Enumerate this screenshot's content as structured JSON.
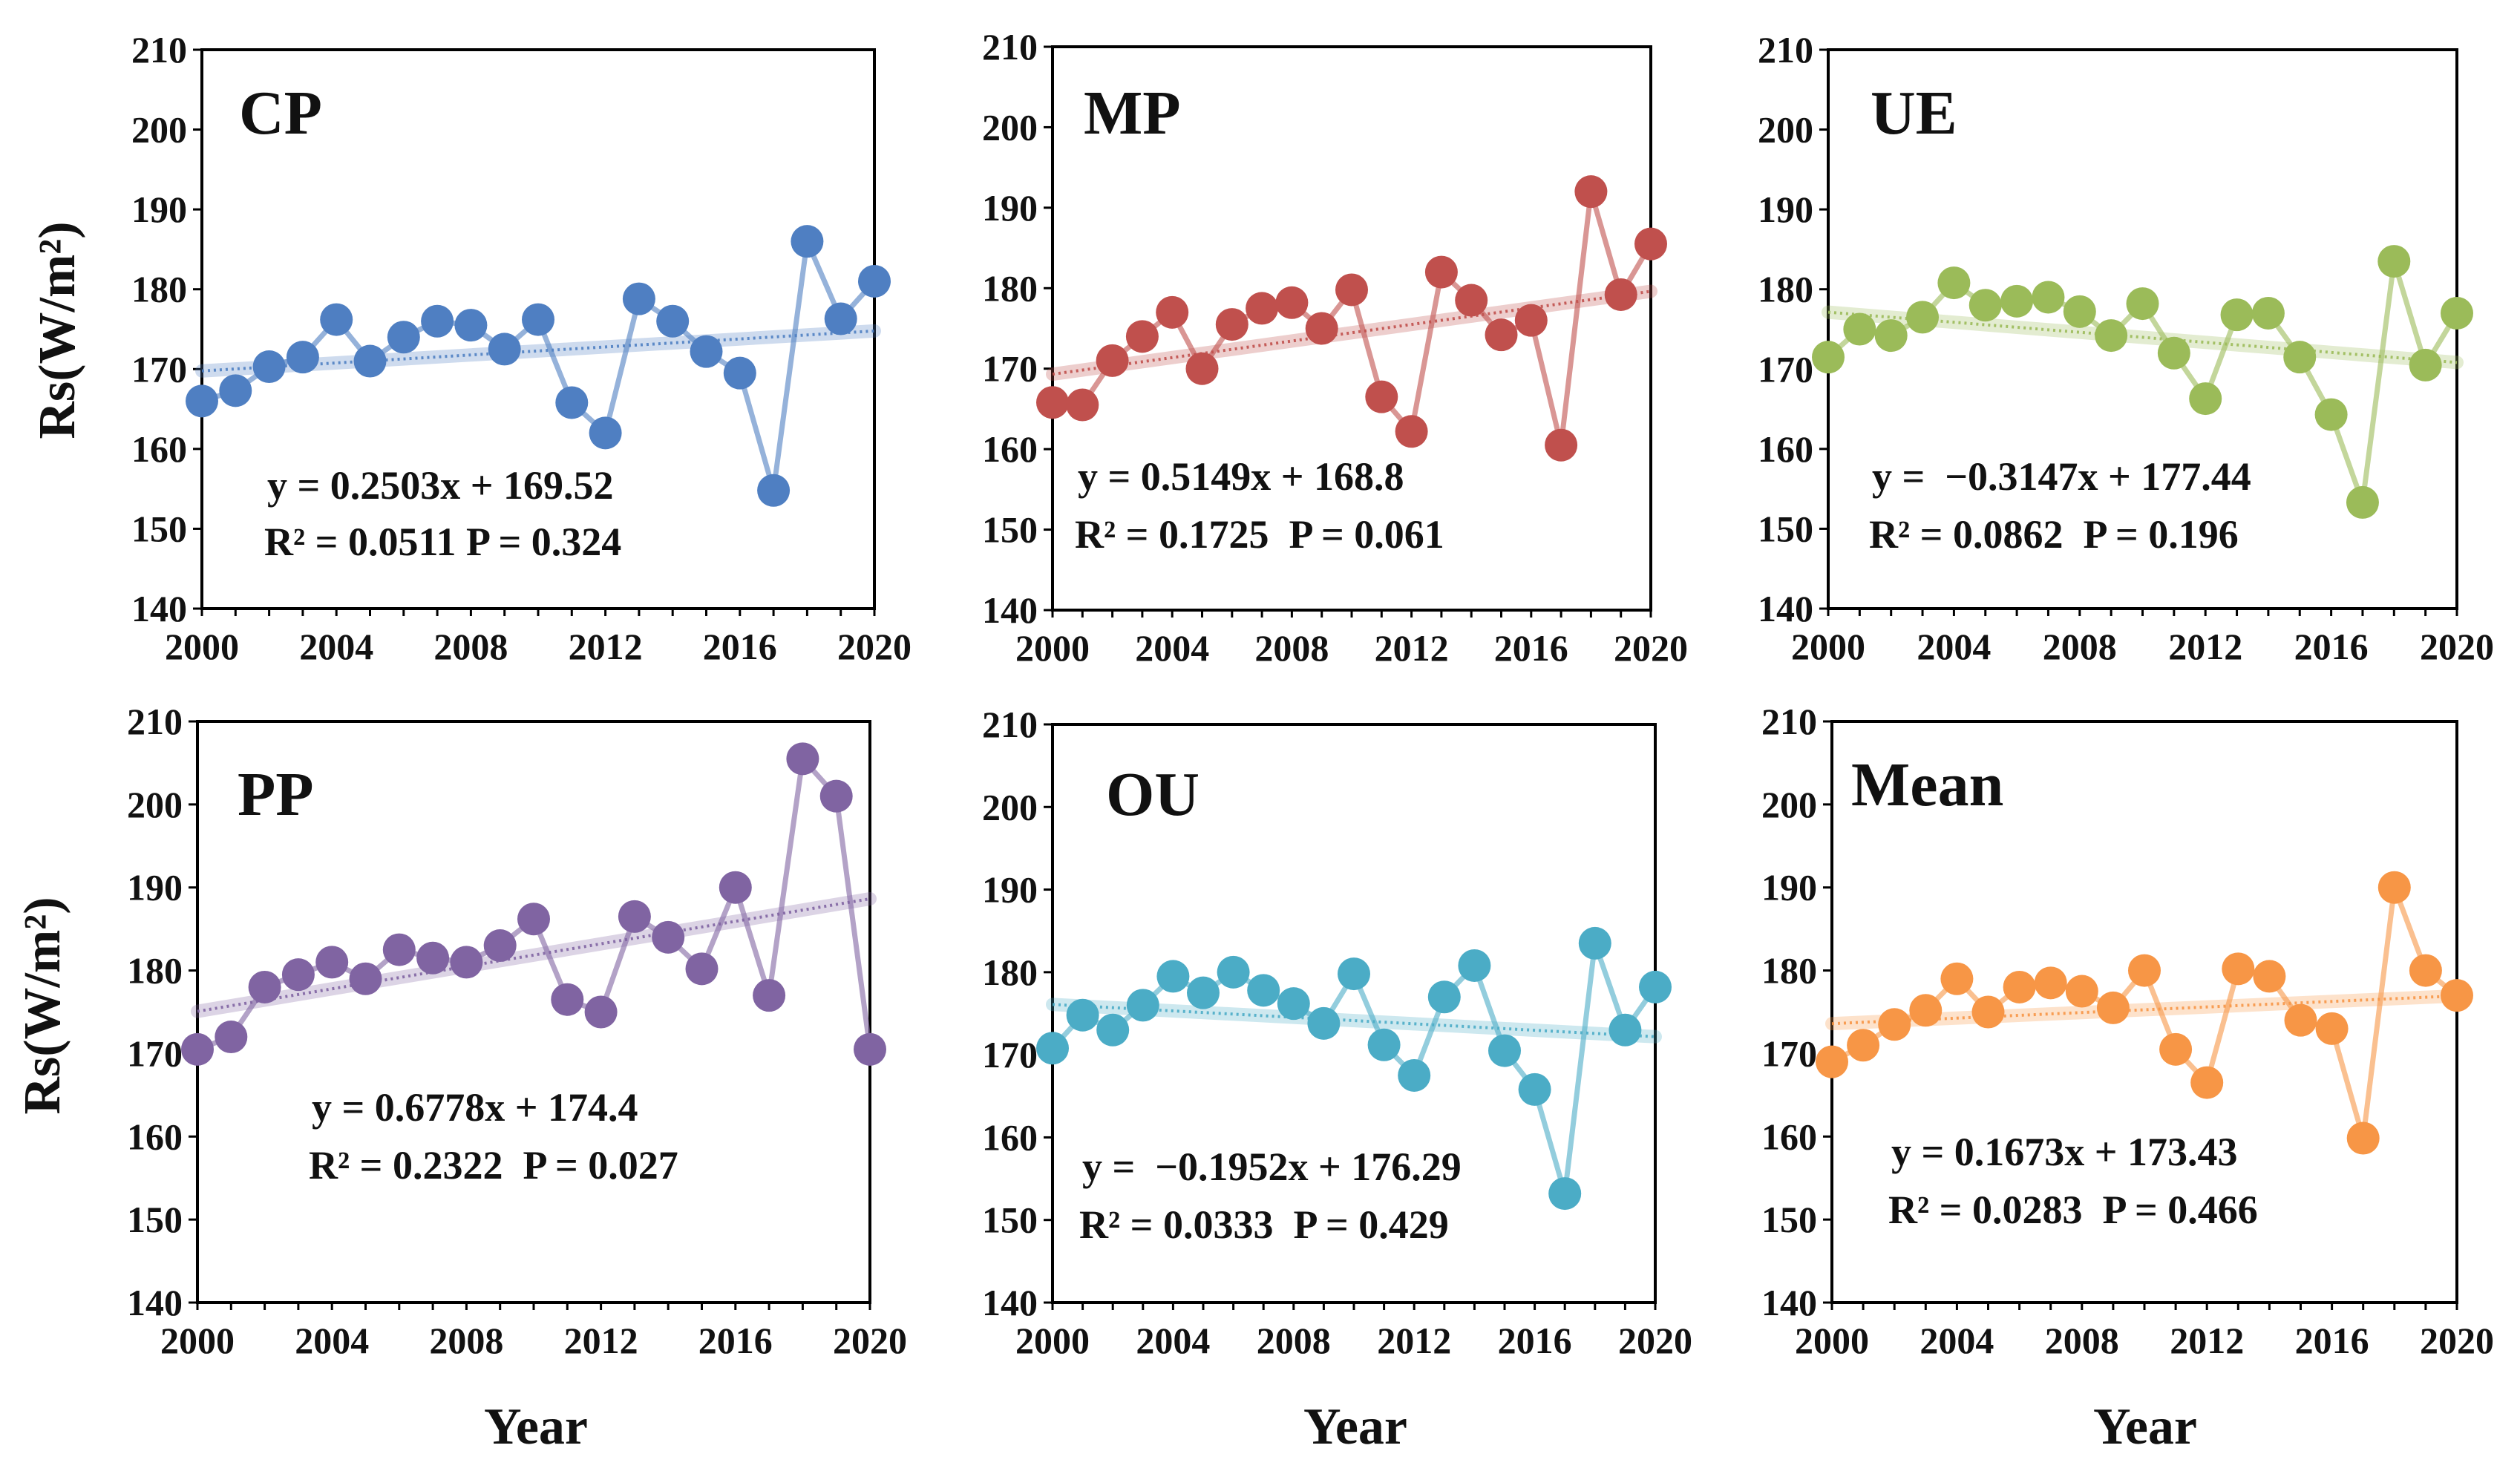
{
  "figure": {
    "ylabel": "Rs(W/m²)",
    "xlabel": "Year"
  },
  "chart_data": [
    {
      "type": "line",
      "title": "CP",
      "color": "#4f7fc2",
      "x": [
        2000,
        2001,
        2002,
        2003,
        2004,
        2005,
        2006,
        2007,
        2008,
        2009,
        2010,
        2011,
        2012,
        2013,
        2014,
        2015,
        2016,
        2017,
        2018,
        2019,
        2020
      ],
      "values": [
        166,
        167.3,
        170.3,
        171.5,
        176.2,
        171,
        174,
        176,
        175.5,
        172.5,
        176.2,
        165.8,
        162,
        178.8,
        176,
        172.2,
        169.5,
        154.8,
        186,
        176.3,
        181
      ],
      "trend": {
        "slope": 0.2503,
        "intercept": 169.52
      },
      "equation": "y = 0.2503x + 169.52",
      "stats": "R² = 0.0511 P = 0.324",
      "xticks": [
        "2000",
        "2004",
        "2008",
        "2012",
        "2016",
        "2020"
      ],
      "yticks": [
        "140",
        "150",
        "160",
        "170",
        "180",
        "190",
        "200",
        "210"
      ],
      "xlim": [
        2000,
        2020
      ],
      "ylim": [
        140,
        210
      ]
    },
    {
      "type": "line",
      "title": "MP",
      "color": "#c0504d",
      "x": [
        2000,
        2001,
        2002,
        2003,
        2004,
        2005,
        2006,
        2007,
        2008,
        2009,
        2010,
        2011,
        2012,
        2013,
        2014,
        2015,
        2016,
        2017,
        2018,
        2019,
        2020
      ],
      "values": [
        165.8,
        165.5,
        171,
        174,
        177,
        170,
        175.5,
        177.5,
        178.2,
        175,
        179.8,
        166.5,
        162.2,
        182,
        178.5,
        174.2,
        176,
        160.5,
        192,
        179.2,
        185.5
      ],
      "trend": {
        "slope": 0.5149,
        "intercept": 168.8
      },
      "equation": "y = 0.5149x + 168.8",
      "stats": "R² = 0.1725  P = 0.061",
      "xticks": [
        "2000",
        "2004",
        "2008",
        "2012",
        "2016",
        "2020"
      ],
      "yticks": [
        "140",
        "150",
        "160",
        "170",
        "180",
        "190",
        "200",
        "210"
      ],
      "xlim": [
        2000,
        2020
      ],
      "ylim": [
        140,
        210
      ]
    },
    {
      "type": "line",
      "title": "UE",
      "color": "#9bbb59",
      "x": [
        2000,
        2001,
        2002,
        2003,
        2004,
        2005,
        2006,
        2007,
        2008,
        2009,
        2010,
        2011,
        2012,
        2013,
        2014,
        2015,
        2016,
        2017,
        2018,
        2019,
        2020
      ],
      "values": [
        171.5,
        175,
        174.2,
        176.5,
        180.8,
        178,
        178.5,
        179,
        177.2,
        174.2,
        178.2,
        172,
        166.3,
        176.8,
        177,
        171.5,
        164.3,
        153.3,
        183.5,
        170.5,
        177
      ],
      "trend": {
        "slope": -0.3147,
        "intercept": 177.44
      },
      "equation": "y =  −0.3147x + 177.44",
      "stats": "R² = 0.0862  P = 0.196",
      "xticks": [
        "2000",
        "2004",
        "2008",
        "2012",
        "2016",
        "2020"
      ],
      "yticks": [
        "140",
        "150",
        "160",
        "170",
        "180",
        "190",
        "200",
        "210"
      ],
      "xlim": [
        2000,
        2020
      ],
      "ylim": [
        140,
        210
      ]
    },
    {
      "type": "line",
      "title": "PP",
      "color": "#8064a2",
      "x": [
        2000,
        2001,
        2002,
        2003,
        2004,
        2005,
        2006,
        2007,
        2008,
        2009,
        2010,
        2011,
        2012,
        2013,
        2014,
        2015,
        2016,
        2017,
        2018,
        2019,
        2020
      ],
      "values": [
        170.5,
        172,
        178,
        179.5,
        181,
        179,
        182.5,
        181.5,
        181,
        183,
        186.2,
        176.5,
        175,
        186.5,
        184,
        180.2,
        190,
        177,
        205.5,
        201,
        170.5
      ],
      "trend": {
        "slope": 0.6778,
        "intercept": 174.4
      },
      "equation": "y = 0.6778x + 174.4",
      "stats": "R² = 0.2322  P = 0.027",
      "xticks": [
        "2000",
        "2004",
        "2008",
        "2012",
        "2016",
        "2020"
      ],
      "yticks": [
        "140",
        "150",
        "160",
        "170",
        "180",
        "190",
        "200",
        "210"
      ],
      "xlim": [
        2000,
        2020
      ],
      "ylim": [
        140,
        210
      ]
    },
    {
      "type": "line",
      "title": "OU",
      "color": "#4bacc6",
      "x": [
        2000,
        2001,
        2002,
        2003,
        2004,
        2005,
        2006,
        2007,
        2008,
        2009,
        2010,
        2011,
        2012,
        2013,
        2014,
        2015,
        2016,
        2017,
        2018,
        2019,
        2020
      ],
      "values": [
        170.8,
        174.8,
        173,
        176,
        179.5,
        177.5,
        180,
        177.8,
        176.2,
        173.8,
        179.8,
        171.2,
        167.5,
        177,
        180.8,
        170.5,
        165.8,
        153.2,
        183.5,
        173,
        178.2
      ],
      "trend": {
        "slope": -0.1952,
        "intercept": 176.29
      },
      "equation": "y =  −0.1952x + 176.29",
      "stats": "R² = 0.0333  P = 0.429",
      "xticks": [
        "2000",
        "2004",
        "2008",
        "2012",
        "2016",
        "2020"
      ],
      "yticks": [
        "140",
        "150",
        "160",
        "170",
        "180",
        "190",
        "200",
        "210"
      ],
      "xlim": [
        2000,
        2020
      ],
      "ylim": [
        140,
        210
      ]
    },
    {
      "type": "line",
      "title": "Mean",
      "color": "#f79646",
      "x": [
        2000,
        2001,
        2002,
        2003,
        2004,
        2005,
        2006,
        2007,
        2008,
        2009,
        2010,
        2011,
        2012,
        2013,
        2014,
        2015,
        2016,
        2017,
        2018,
        2019,
        2020
      ],
      "values": [
        169,
        171,
        173.5,
        175.2,
        179,
        175,
        178,
        178.5,
        177.5,
        175.5,
        180,
        170.5,
        166.5,
        180.2,
        179.3,
        174,
        173,
        159.8,
        190,
        180,
        177
      ],
      "trend": {
        "slope": 0.1673,
        "intercept": 173.43
      },
      "equation": "y = 0.1673x + 173.43",
      "stats": "R² = 0.0283  P = 0.466",
      "xticks": [
        "2000",
        "2004",
        "2008",
        "2012",
        "2016",
        "2020"
      ],
      "yticks": [
        "140",
        "150",
        "160",
        "170",
        "180",
        "190",
        "200",
        "210"
      ],
      "xlim": [
        2000,
        2020
      ],
      "ylim": [
        140,
        210
      ]
    }
  ]
}
